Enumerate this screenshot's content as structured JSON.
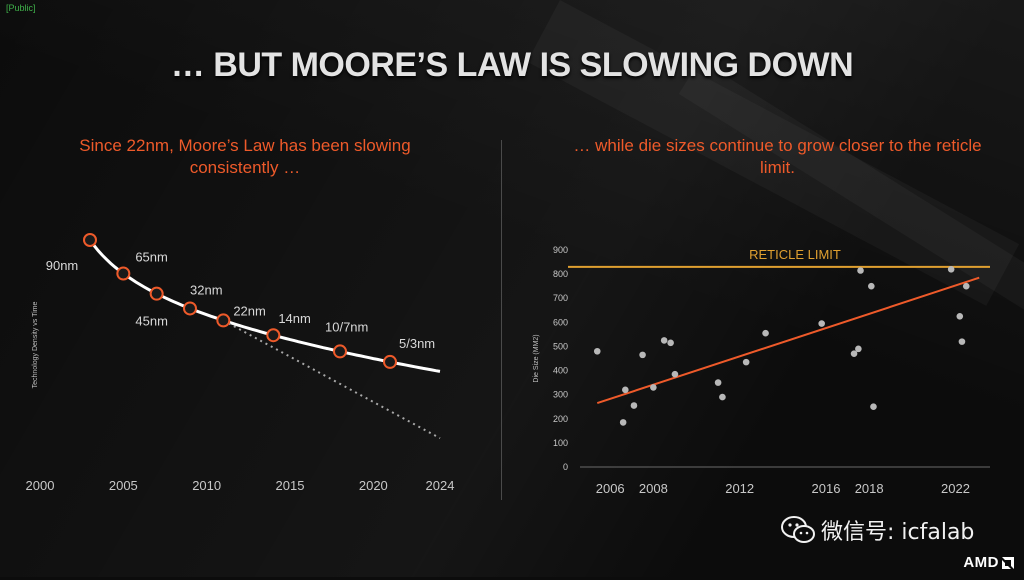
{
  "slide": {
    "public_tag": "[Public]",
    "title": "… BUT MOORE’S LAW IS SLOWING DOWN",
    "left_subtitle": "Since 22nm, Moore’s Law has been slowing consistently …",
    "right_subtitle": "… while die sizes continue to grow closer to the reticle limit.",
    "watermark": "微信号: icfalab",
    "logo": "AMD"
  },
  "colors": {
    "accent": "#ee5a2a",
    "reticle": "#e0a030",
    "curve": "#ffffff",
    "dots": "#b8b8b8"
  },
  "chart_data": [
    {
      "type": "line",
      "title": "",
      "xlabel": "",
      "ylabel": "Technology Density vs Time",
      "xlim": [
        2000,
        2024
      ],
      "x_ticks": [
        "2000",
        "2005",
        "2010",
        "2015",
        "2020",
        "2024"
      ],
      "series": [
        {
          "name": "",
          "points": [
            {
              "label": "90nm",
              "x": 2003
            },
            {
              "label": "65nm",
              "x": 2005
            },
            {
              "label": "45nm",
              "x": 2007
            },
            {
              "label": "32nm",
              "x": 2009
            },
            {
              "label": "22nm",
              "x": 2011
            },
            {
              "label": "14nm",
              "x": 2014
            },
            {
              "label": "10/7nm",
              "x": 2018
            },
            {
              "label": "5/3nm",
              "x": 2021
            }
          ]
        }
      ],
      "annotations": [
        "dotted line extrapolates the pre-22nm trend"
      ]
    },
    {
      "type": "scatter",
      "title": "",
      "xlabel": "",
      "ylabel": "Die Size (MM2)",
      "xlim": [
        2004.6,
        2023.6
      ],
      "ylim": [
        0,
        900
      ],
      "x_ticks": [
        "2006",
        "2008",
        "2012",
        "2016",
        "2018",
        "2022"
      ],
      "y_ticks": [
        "0",
        "100",
        "200",
        "300",
        "400",
        "500",
        "600",
        "700",
        "800",
        "900"
      ],
      "reticle_limit": {
        "label": "RETICLE LIMIT",
        "value": 830
      },
      "trendline": {
        "x": [
          2005.4,
          2023.1
        ],
        "y": [
          265,
          785
        ]
      },
      "points": [
        {
          "x": 2005.4,
          "y": 480
        },
        {
          "x": 2006.6,
          "y": 185
        },
        {
          "x": 2006.7,
          "y": 320
        },
        {
          "x": 2007.1,
          "y": 255
        },
        {
          "x": 2007.5,
          "y": 465
        },
        {
          "x": 2008.0,
          "y": 330
        },
        {
          "x": 2008.5,
          "y": 525
        },
        {
          "x": 2008.8,
          "y": 515
        },
        {
          "x": 2009.0,
          "y": 385
        },
        {
          "x": 2011.0,
          "y": 350
        },
        {
          "x": 2011.2,
          "y": 290
        },
        {
          "x": 2012.3,
          "y": 435
        },
        {
          "x": 2013.2,
          "y": 555
        },
        {
          "x": 2015.8,
          "y": 595
        },
        {
          "x": 2017.3,
          "y": 470
        },
        {
          "x": 2017.5,
          "y": 490
        },
        {
          "x": 2017.6,
          "y": 815
        },
        {
          "x": 2018.1,
          "y": 750
        },
        {
          "x": 2018.2,
          "y": 250
        },
        {
          "x": 2021.8,
          "y": 820
        },
        {
          "x": 2022.2,
          "y": 625
        },
        {
          "x": 2022.3,
          "y": 520
        },
        {
          "x": 2022.5,
          "y": 750
        }
      ]
    }
  ]
}
